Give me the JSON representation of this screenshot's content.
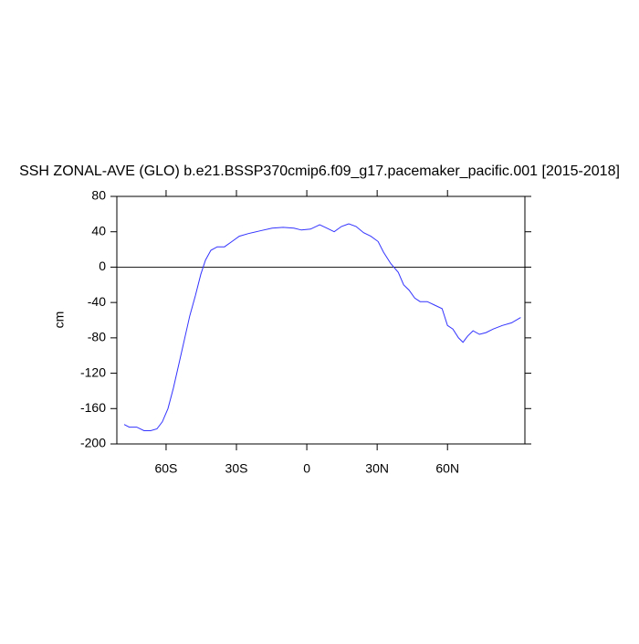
{
  "chart_data": {
    "type": "line",
    "title": "SSH ZONAL-AVE (GLO) b.e21.BSSP370cmip6.f09_g17.pacemaker_pacific.001 [2015-2018]",
    "y_label": "cm",
    "x": [
      -77.9,
      -75.7,
      -72.5,
      -69.4,
      -66.6,
      -63.9,
      -61.6,
      -59.2,
      -56.9,
      -54.5,
      -52.2,
      -49.9,
      -47.5,
      -45.2,
      -43.2,
      -40.9,
      -38.2,
      -35.1,
      -31.9,
      -28.8,
      -24.9,
      -19.9,
      -14.8,
      -10.1,
      -5.5,
      -2.3,
      1.6,
      5.5,
      8.6,
      11.7,
      14.8,
      17.9,
      21,
      24.2,
      27.3,
      30.4,
      32.7,
      35.8,
      39,
      41.3,
      43.6,
      46,
      48.3,
      51.4,
      54.5,
      57.7,
      60,
      62.3,
      64.7,
      66.6,
      68.6,
      70.9,
      73.6,
      76.4,
      79.5,
      83.4,
      87.3,
      91.2
    ],
    "series": [
      {
        "name": "SSH",
        "color": "#3333ff",
        "values": [
          -178,
          -181,
          -181,
          -185,
          -185,
          -183,
          -175,
          -160,
          -137,
          -109,
          -82,
          -55,
          -32,
          -8,
          8,
          19,
          23,
          23,
          29,
          35,
          38,
          41,
          44,
          45,
          44,
          42,
          43,
          48,
          44,
          40,
          46,
          49,
          46,
          39,
          35,
          29,
          17,
          4,
          -6,
          -20,
          -26,
          -35,
          -39,
          -39,
          -43,
          -47,
          -66,
          -70,
          -80,
          -85,
          -78,
          -72,
          -76,
          -74,
          -70,
          -66,
          -63,
          -57
        ]
      }
    ],
    "xlim": [
      -81,
      93
    ],
    "xticks": [
      {
        "value": -60,
        "label": "60S"
      },
      {
        "value": -30,
        "label": "30S"
      },
      0,
      {
        "value": 30,
        "label": "30N"
      },
      {
        "value": 60,
        "label": "60N"
      }
    ],
    "ylim": [
      -200,
      80
    ],
    "yticks": [
      -200,
      -160,
      -120,
      -80,
      -40,
      0,
      40,
      80
    ],
    "reference_line": 0
  }
}
